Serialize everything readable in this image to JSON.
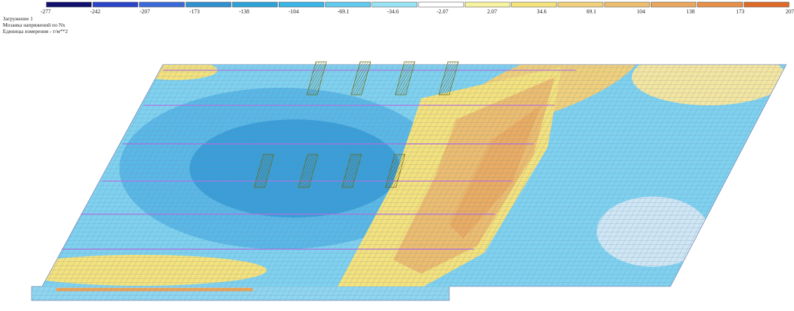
{
  "header": {
    "lines": [
      "Загружение 1",
      "Мозаика напряжений по Nx",
      "Единицы измерения - т/м**2"
    ]
  },
  "legend": {
    "labels": [
      "-277",
      "-242",
      "-207",
      "-173",
      "-138",
      "-104",
      "-69.1",
      "-34.6",
      "-2.07",
      "2.07",
      "34.6",
      "69.1",
      "104",
      "138",
      "173",
      "207"
    ],
    "colors": [
      "#10106e",
      "#2b45c9",
      "#3a6ad8",
      "#2f8fcf",
      "#2ea2d8",
      "#3ab5e8",
      "#62c9ef",
      "#98e3f3",
      "#ffffff",
      "#f7f3a2",
      "#f4e27c",
      "#f0d07a",
      "#edbd6e",
      "#e9a75e",
      "#e68f48",
      "#df6a28"
    ]
  }
}
